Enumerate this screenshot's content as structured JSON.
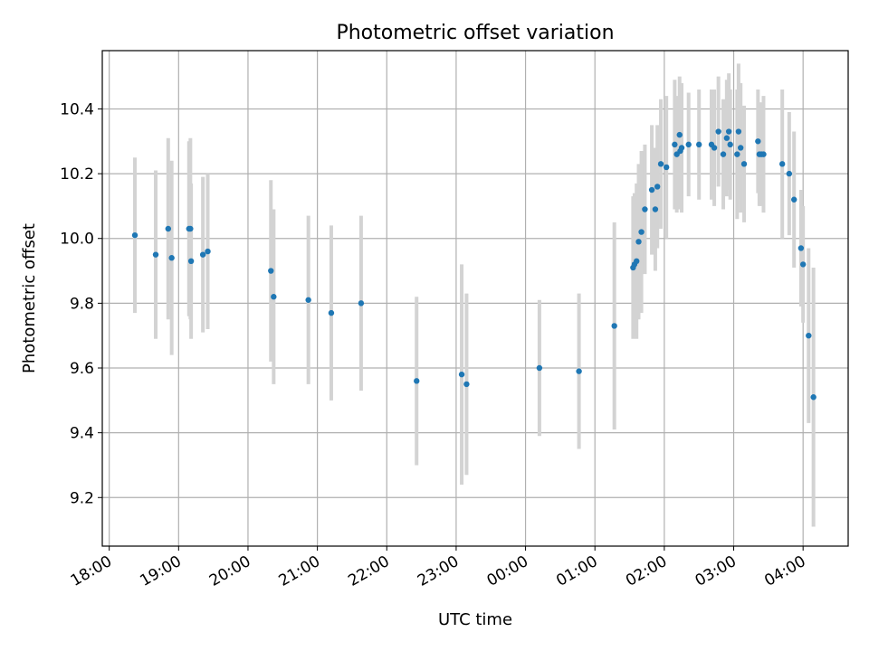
{
  "chart_data": {
    "type": "scatter",
    "title": "Photometric offset variation",
    "xlabel": "UTC time",
    "ylabel": "Photometric offset",
    "x_ticks": [
      "18:00",
      "19:00",
      "20:00",
      "21:00",
      "22:00",
      "23:00",
      "00:00",
      "01:00",
      "02:00",
      "03:00",
      "04:00"
    ],
    "y_ticks": [
      "9.2",
      "9.4",
      "9.6",
      "9.8",
      "10.0",
      "10.2",
      "10.4"
    ],
    "ylim": [
      9.05,
      10.58
    ],
    "xlim_hours": [
      17.9,
      28.65
    ],
    "grid": true,
    "colors": {
      "marker": "#1f77b4",
      "errorbar": "#d3d3d3",
      "grid": "#b0b0b0"
    },
    "series": [
      {
        "x": [
          18.37,
          18.67,
          18.85,
          18.9,
          19.15,
          19.17,
          19.18,
          19.35,
          19.42,
          20.33,
          20.37,
          20.87,
          21.2,
          21.63,
          22.43,
          23.08,
          23.15,
          24.2,
          24.77,
          25.28,
          25.55,
          25.57,
          25.6,
          25.63,
          25.67,
          25.72,
          25.82,
          25.87,
          25.9,
          25.95,
          26.03,
          26.15,
          26.18,
          26.22,
          26.23,
          26.25,
          26.35,
          26.5,
          26.68,
          26.72,
          26.78,
          26.85,
          26.9,
          26.93,
          26.95,
          27.05,
          27.07,
          27.1,
          27.15,
          27.35,
          27.37,
          27.4,
          27.43,
          27.7,
          27.8,
          27.87,
          27.97,
          28.0,
          28.08,
          28.15
        ],
        "y": [
          10.01,
          9.95,
          10.03,
          9.94,
          10.03,
          10.03,
          9.93,
          9.95,
          9.96,
          9.9,
          9.82,
          9.81,
          9.77,
          9.8,
          9.56,
          9.58,
          9.55,
          9.6,
          9.59,
          9.73,
          9.91,
          9.92,
          9.93,
          9.99,
          10.02,
          10.09,
          10.15,
          10.09,
          10.16,
          10.23,
          10.22,
          10.29,
          10.26,
          10.32,
          10.27,
          10.28,
          10.29,
          10.29,
          10.29,
          10.28,
          10.33,
          10.26,
          10.31,
          10.33,
          10.29,
          10.26,
          10.33,
          10.28,
          10.23,
          10.3,
          10.26,
          10.26,
          10.26,
          10.23,
          10.2,
          10.12,
          9.97,
          9.92,
          9.7,
          9.51
        ],
        "err": [
          0.24,
          0.26,
          0.28,
          0.3,
          0.27,
          0.28,
          0.24,
          0.24,
          0.24,
          0.28,
          0.27,
          0.26,
          0.27,
          0.27,
          0.26,
          0.34,
          0.28,
          0.21,
          0.24,
          0.32,
          0.22,
          0.22,
          0.24,
          0.24,
          0.25,
          0.2,
          0.2,
          0.19,
          0.19,
          0.2,
          0.22,
          0.2,
          0.18,
          0.18,
          0.18,
          0.2,
          0.16,
          0.17,
          0.17,
          0.18,
          0.17,
          0.17,
          0.18,
          0.18,
          0.17,
          0.2,
          0.21,
          0.2,
          0.18,
          0.16,
          0.16,
          0.16,
          0.18,
          0.23,
          0.19,
          0.21,
          0.18,
          0.18,
          0.27,
          0.4
        ]
      }
    ]
  }
}
